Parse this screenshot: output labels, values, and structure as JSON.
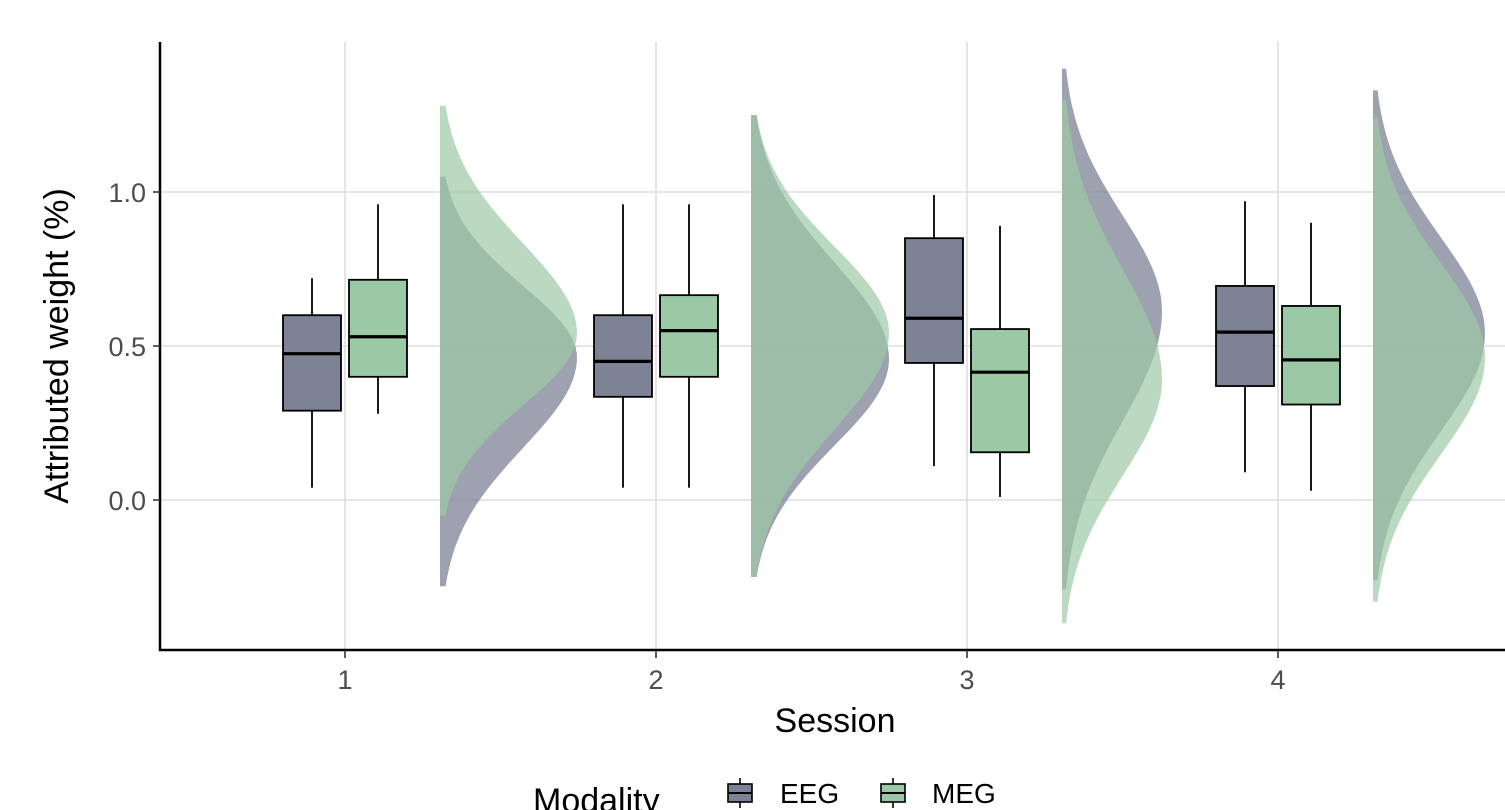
{
  "chart_data": {
    "type": "raincloud",
    "xlabel": "Session",
    "ylabel": "Attributed weight (%)",
    "categories": [
      "1",
      "2",
      "3",
      "4"
    ],
    "yticks": [
      0.0,
      0.5,
      1.0
    ],
    "ytick_labels": [
      "0.0",
      "0.5",
      "1.0"
    ],
    "ylim": [
      -0.49,
      1.48
    ],
    "grid": true,
    "legend": {
      "title": "Modality",
      "position": "bottom"
    },
    "series": [
      {
        "name": "EEG",
        "color": "#7d8294",
        "boxes": [
          {
            "session": "1",
            "whisker_low": 0.04,
            "q1": 0.29,
            "median": 0.475,
            "q3": 0.6,
            "whisker_high": 0.72
          },
          {
            "session": "2",
            "whisker_low": 0.04,
            "q1": 0.335,
            "median": 0.45,
            "q3": 0.6,
            "whisker_high": 0.96
          },
          {
            "session": "3",
            "whisker_low": 0.11,
            "q1": 0.445,
            "median": 0.59,
            "q3": 0.85,
            "whisker_high": 0.99
          },
          {
            "session": "4",
            "whisker_low": 0.09,
            "q1": 0.37,
            "median": 0.545,
            "q3": 0.695,
            "whisker_high": 0.97
          }
        ],
        "density_range": [
          {
            "session": "1",
            "min": -0.28,
            "max": 1.05
          },
          {
            "session": "2",
            "min": -0.25,
            "max": 1.25
          },
          {
            "session": "3",
            "min": -0.29,
            "max": 1.4
          },
          {
            "session": "4",
            "min": -0.26,
            "max": 1.33
          }
        ]
      },
      {
        "name": "MEG",
        "color": "#9cc9a5",
        "boxes": [
          {
            "session": "1",
            "whisker_low": 0.28,
            "q1": 0.4,
            "median": 0.53,
            "q3": 0.715,
            "whisker_high": 0.96
          },
          {
            "session": "2",
            "whisker_low": 0.04,
            "q1": 0.4,
            "median": 0.55,
            "q3": 0.665,
            "whisker_high": 0.96
          },
          {
            "session": "3",
            "whisker_low": 0.01,
            "q1": 0.155,
            "median": 0.415,
            "q3": 0.555,
            "whisker_high": 0.89
          },
          {
            "session": "4",
            "whisker_low": 0.03,
            "q1": 0.31,
            "median": 0.455,
            "q3": 0.63,
            "whisker_high": 0.9
          }
        ],
        "density_range": [
          {
            "session": "1",
            "min": -0.05,
            "max": 1.28
          },
          {
            "session": "2",
            "min": -0.25,
            "max": 1.25
          },
          {
            "session": "3",
            "min": -0.4,
            "max": 1.3
          },
          {
            "session": "4",
            "min": -0.33,
            "max": 1.24
          }
        ]
      }
    ]
  }
}
